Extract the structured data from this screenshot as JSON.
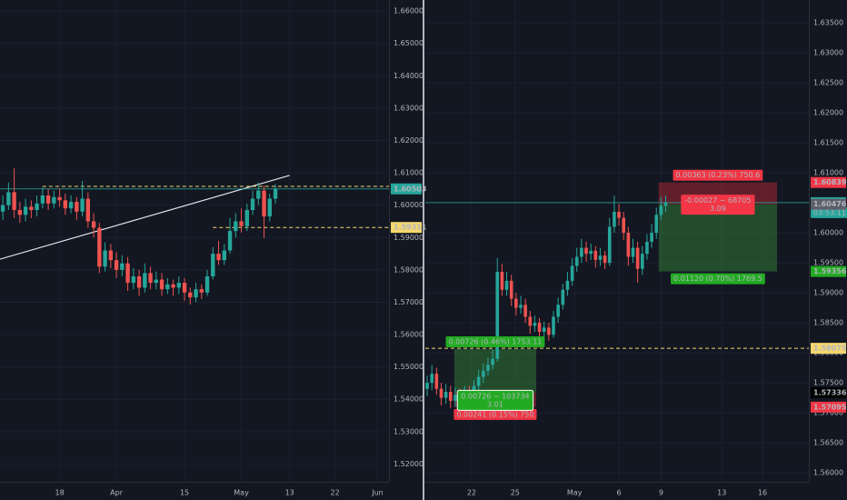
{
  "chart_data": [
    {
      "type": "candlestick",
      "up_color": "#26a69a",
      "down_color": "#ef5350",
      "open": [
        1.598,
        1.6,
        1.604,
        1.5985,
        1.597,
        1.5995,
        1.5985,
        1.6005,
        1.603,
        1.6005,
        1.6025,
        1.6015,
        1.599,
        1.601,
        1.598,
        1.602,
        1.595,
        1.593,
        1.581,
        1.586,
        1.583,
        1.58,
        1.582,
        1.576,
        1.578,
        1.5745,
        1.579,
        1.576,
        1.577,
        1.574,
        1.5755,
        1.5745,
        1.576,
        1.573,
        1.5715,
        1.574,
        1.573,
        1.578,
        1.585,
        1.583,
        1.586,
        1.592,
        1.595,
        1.5935,
        1.5985,
        1.602,
        1.6045,
        1.5965,
        1.602
      ],
      "high": [
        1.603,
        1.607,
        1.6114,
        1.601,
        1.602,
        1.6015,
        1.603,
        1.6055,
        1.605,
        1.6045,
        1.605,
        1.6035,
        1.603,
        1.6025,
        1.6075,
        1.604,
        1.5975,
        1.5945,
        1.5885,
        1.588,
        1.5855,
        1.5845,
        1.584,
        1.5805,
        1.58,
        1.582,
        1.581,
        1.5795,
        1.579,
        1.5775,
        1.577,
        1.578,
        1.5775,
        1.5745,
        1.576,
        1.5755,
        1.58,
        1.587,
        1.589,
        1.588,
        1.596,
        1.5975,
        1.599,
        1.6005,
        1.6045,
        1.607,
        1.606,
        1.6035,
        1.6065
      ],
      "low": [
        1.5955,
        1.5985,
        1.596,
        1.5945,
        1.595,
        1.596,
        1.5965,
        1.599,
        1.5985,
        1.599,
        1.5995,
        1.597,
        1.5975,
        1.5955,
        1.5965,
        1.593,
        1.59,
        1.579,
        1.5795,
        1.5805,
        1.5775,
        1.578,
        1.5735,
        1.574,
        1.572,
        1.573,
        1.574,
        1.574,
        1.572,
        1.5725,
        1.572,
        1.5725,
        1.5705,
        1.5693,
        1.57,
        1.571,
        1.572,
        1.577,
        1.5815,
        1.5815,
        1.585,
        1.59,
        1.5915,
        1.592,
        1.597,
        1.6,
        1.5898,
        1.595,
        1.6005
      ],
      "close": [
        1.6,
        1.604,
        1.5985,
        1.597,
        1.5995,
        1.5985,
        1.6005,
        1.603,
        1.6005,
        1.6025,
        1.6015,
        1.599,
        1.601,
        1.598,
        1.602,
        1.595,
        1.593,
        1.581,
        1.586,
        1.583,
        1.58,
        1.582,
        1.576,
        1.578,
        1.5745,
        1.579,
        1.576,
        1.577,
        1.574,
        1.5755,
        1.5745,
        1.576,
        1.573,
        1.5715,
        1.574,
        1.573,
        1.578,
        1.585,
        1.583,
        1.586,
        1.592,
        1.595,
        1.5935,
        1.5985,
        1.602,
        1.6045,
        1.5965,
        1.602,
        1.60503
      ],
      "xlim": [
        -0.5,
        68
      ],
      "xticks": [
        {
          "value": 10,
          "label": "18"
        },
        {
          "value": 20,
          "label": "Apr"
        },
        {
          "value": 32,
          "label": "15"
        },
        {
          "value": 42,
          "label": "May"
        },
        {
          "value": 50.5,
          "label": "13"
        },
        {
          "value": 58.5,
          "label": "22"
        },
        {
          "value": 66,
          "label": "Jun"
        }
      ],
      "ylim": [
        1.5145,
        1.6634
      ],
      "yticks": [
        {
          "value": 1.52,
          "label": "1.52000"
        },
        {
          "value": 1.53,
          "label": "1.53000"
        },
        {
          "value": 1.54,
          "label": "1.54000"
        },
        {
          "value": 1.55,
          "label": "1.55000"
        },
        {
          "value": 1.56,
          "label": "1.56000"
        },
        {
          "value": 1.57,
          "label": "1.57000"
        },
        {
          "value": 1.58,
          "label": "1.58000"
        },
        {
          "value": 1.59,
          "label": "1.59000"
        },
        {
          "value": 1.6,
          "label": "1.60000"
        },
        {
          "value": 1.61,
          "label": "1.61000"
        },
        {
          "value": 1.62,
          "label": "1.62000"
        },
        {
          "value": 1.63,
          "label": "1.63000"
        },
        {
          "value": 1.64,
          "label": "1.64000"
        },
        {
          "value": 1.65,
          "label": "1.65000"
        },
        {
          "value": 1.66,
          "label": "1.66000"
        }
      ],
      "levels": [
        {
          "value": 1.60503,
          "label": "1.60503",
          "color": "#26a69a",
          "text_color": "#ffffff",
          "line": "solid",
          "start": -0.5
        },
        {
          "value": 1.59311,
          "label": "1.59311",
          "color": "#f5d76e",
          "text_color": "#131722",
          "line": "dashed",
          "start": 37
        }
      ],
      "lines": [
        {
          "value": 1.6058,
          "start": 7,
          "color": "#f5d76e"
        }
      ],
      "trendline": {
        "start": [
          -0.5,
          1.5833
        ],
        "end": [
          50.5,
          1.6092
        ],
        "color": "#e0e3eb"
      }
    },
    {
      "type": "candlestick",
      "up_color": "#26a69a",
      "down_color": "#ef5350",
      "open": [
        1.574,
        1.575,
        1.5765,
        1.574,
        1.5725,
        1.5735,
        1.572,
        1.573,
        1.5722,
        1.5735,
        1.5728,
        1.5745,
        1.576,
        1.577,
        1.578,
        1.579,
        1.5935,
        1.5905,
        1.592,
        1.589,
        1.5875,
        1.588,
        1.586,
        1.5845,
        1.585,
        1.5835,
        1.5842,
        1.583,
        1.586,
        1.588,
        1.5905,
        1.592,
        1.5945,
        1.596,
        1.5975,
        1.5965,
        1.597,
        1.5955,
        1.5962,
        1.595,
        1.601,
        1.6035,
        1.6025,
        1.6,
        1.596,
        1.5975,
        1.594,
        1.5965,
        1.5985,
        1.6,
        1.603,
        1.6045
      ],
      "high": [
        1.5762,
        1.578,
        1.5775,
        1.575,
        1.5748,
        1.5745,
        1.5742,
        1.574,
        1.5745,
        1.5745,
        1.5755,
        1.5772,
        1.5782,
        1.5792,
        1.5805,
        1.5958,
        1.5948,
        1.5935,
        1.593,
        1.59,
        1.5895,
        1.589,
        1.587,
        1.5862,
        1.5858,
        1.5852,
        1.585,
        1.587,
        1.5892,
        1.5915,
        1.5935,
        1.5958,
        1.5975,
        1.599,
        1.5985,
        1.5982,
        1.5978,
        1.5975,
        1.597,
        1.6025,
        1.6062,
        1.6048,
        1.6035,
        1.601,
        1.599,
        1.5985,
        1.5978,
        1.5998,
        1.6015,
        1.6042,
        1.606,
        1.6062
      ],
      "low": [
        1.5728,
        1.5738,
        1.573,
        1.5712,
        1.5715,
        1.5708,
        1.571,
        1.5712,
        1.5715,
        1.5718,
        1.572,
        1.5738,
        1.575,
        1.5762,
        1.5772,
        1.5785,
        1.5895,
        1.5895,
        1.5878,
        1.5862,
        1.5865,
        1.585,
        1.5832,
        1.5835,
        1.5825,
        1.5825,
        1.582,
        1.5825,
        1.585,
        1.5872,
        1.5895,
        1.5912,
        1.5935,
        1.595,
        1.5952,
        1.5955,
        1.5942,
        1.5945,
        1.594,
        1.5945,
        1.6,
        1.6012,
        1.5988,
        1.5945,
        1.595,
        1.5917,
        1.593,
        1.5955,
        1.5975,
        1.599,
        1.6022,
        1.6035
      ],
      "close": [
        1.575,
        1.5765,
        1.574,
        1.5725,
        1.5735,
        1.572,
        1.573,
        1.5722,
        1.5735,
        1.5728,
        1.5745,
        1.576,
        1.577,
        1.578,
        1.579,
        1.5935,
        1.5905,
        1.592,
        1.589,
        1.5875,
        1.588,
        1.586,
        1.5845,
        1.585,
        1.5835,
        1.5842,
        1.583,
        1.586,
        1.588,
        1.5905,
        1.592,
        1.5945,
        1.596,
        1.5975,
        1.5965,
        1.597,
        1.5955,
        1.5962,
        1.595,
        1.601,
        1.6035,
        1.6025,
        1.6,
        1.596,
        1.5975,
        1.594,
        1.5965,
        1.5985,
        1.6,
        1.603,
        1.6045,
        1.60503
      ],
      "xlim": [
        -0.4,
        81.6
      ],
      "xticks": [
        {
          "value": 9.5,
          "label": "22"
        },
        {
          "value": 18.8,
          "label": "25"
        },
        {
          "value": 31.5,
          "label": "May"
        },
        {
          "value": 41,
          "label": "6"
        },
        {
          "value": 50,
          "label": "9"
        },
        {
          "value": 63,
          "label": "13"
        },
        {
          "value": 71.7,
          "label": "16"
        }
      ],
      "ylim": [
        1.5585,
        1.6388
      ],
      "yticks": [
        {
          "value": 1.56,
          "label": "1.56000"
        },
        {
          "value": 1.565,
          "label": "1.56500"
        },
        {
          "value": 1.57,
          "label": "1.57000"
        },
        {
          "value": 1.575,
          "label": "1.57500"
        },
        {
          "value": 1.58,
          "label": "1.58000"
        },
        {
          "value": 1.585,
          "label": "1.58500"
        },
        {
          "value": 1.59,
          "label": "1.59000"
        },
        {
          "value": 1.595,
          "label": "1.59500"
        },
        {
          "value": 1.6,
          "label": "1.60000"
        },
        {
          "value": 1.605,
          "label": "1.60500"
        },
        {
          "value": 1.61,
          "label": "1.61000"
        },
        {
          "value": 1.615,
          "label": "1.61500"
        },
        {
          "value": 1.62,
          "label": "1.62000"
        },
        {
          "value": 1.625,
          "label": "1.62500"
        },
        {
          "value": 1.63,
          "label": "1.63000"
        },
        {
          "value": 1.635,
          "label": "1.63500"
        }
      ],
      "levels": [
        {
          "value": 1.60839,
          "label": "1.60839",
          "color": "#f23645",
          "text_color": "#ffffff"
        },
        {
          "value": 1.60503,
          "label": "1.60503",
          "color": "#26a69a",
          "text_color": "#ffffff",
          "line": "solid",
          "start": -0.4
        },
        {
          "value": 1.60476,
          "label": "1.60476",
          "color": "#5d606b",
          "text_color": "#ffffff"
        },
        {
          "value": 1.59356,
          "label": "1.59356",
          "color": "#22ab22",
          "text_color": "#ffffff"
        },
        {
          "value": 1.58075,
          "label": "1.58075",
          "color": "#f5d76e",
          "text_color": "#131722",
          "line": "dashed",
          "start": -0.4
        },
        {
          "value": 1.57336,
          "label": "1.57336",
          "color": "#000000",
          "text_color": "#ffffff"
        },
        {
          "value": 1.57095,
          "label": "1.57095",
          "color": "#f23645",
          "text_color": "#ffffff"
        }
      ],
      "countdown": "03:53:11",
      "positions": [
        {
          "side": "long",
          "start": 5.8,
          "end": 23.3,
          "entry": 1.57336,
          "stop": 1.57095,
          "target": 1.58062,
          "target_label": "0.00726 (0.46%) 1753.11",
          "pnl_label": "0.00726 ~ 103734",
          "ratio_label": "3.01",
          "stop_label": "0.00241 (0.15%) 750"
        },
        {
          "side": "short",
          "start": 49.5,
          "end": 74.8,
          "entry": 1.60476,
          "stop": 1.60839,
          "target": 1.59356,
          "stop_label": "0.00363 (0.23%) 750.6",
          "pnl_label": "-0.00027 ~ 68705",
          "ratio_label": "3.09",
          "target_label": "0.01120 (0.70%) 1769.5"
        }
      ]
    }
  ]
}
